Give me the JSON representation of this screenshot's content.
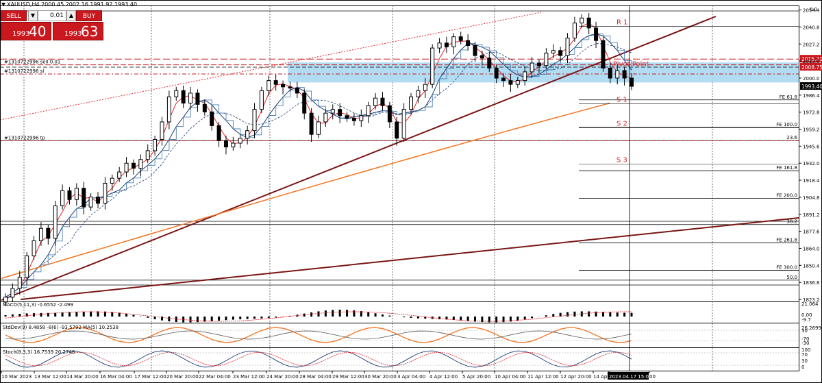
{
  "symbol_header": "XAUUSD,H4  2000.45 2002.16 1991.92 1993.40",
  "trade_panel": {
    "sell_label": "SELL",
    "buy_label": "BUY",
    "lot": "0.01",
    "sell_price_small": "1993",
    "sell_price_big": "40",
    "buy_price_small": "1993",
    "buy_price_big": "63"
  },
  "price_axis": {
    "top_label": "0.0",
    "ticks": [
      2054.4,
      2040.8,
      2027.2,
      2013.6,
      2000.0,
      1986.4,
      1972.8,
      1959.2,
      1945.6,
      1932.0,
      1918.4,
      1904.8,
      1891.2,
      1877.6,
      1864.0,
      1850.4,
      1836.8,
      1823.2
    ],
    "current_price": "1993.40",
    "badges": [
      {
        "text": "2015.21",
        "color": "#c9181e"
      },
      {
        "text": "2008.75",
        "color": "#c9181e"
      }
    ]
  },
  "time_axis": [
    "10 Mar 2023",
    "13 Mar 12:00",
    "14 Mar 20:00",
    "16 Mar 04:00",
    "17 Mar 12:00",
    "20 Mar 20:00",
    "22 Mar 04:00",
    "23 Mar 12:00",
    "24 Mar 20:00",
    "28 Mar 04:00",
    "29 Mar 12:00",
    "30 Mar 20:00",
    "3 Apr 04:00",
    "4 Apr 12:00",
    "5 Apr 20:00",
    "10 Apr 04:00",
    "11 Apr 12:00",
    "12 Apr 20:00",
    "14 Apr",
    "2023.04.17 15:00",
    "00"
  ],
  "order_lines": [
    {
      "label": "#1310722996 sell 0.01",
      "price": 2010.6
    },
    {
      "label": "#1310722996 sl",
      "price": 2003.3
    },
    {
      "label": "#1310722996 tp",
      "price": 1950.0
    }
  ],
  "pivot_labels": [
    "R 1",
    "Pivot Point",
    "S 1",
    "S 2",
    "S 3"
  ],
  "fib_levels": [
    {
      "label": "FE 61.8",
      "price": 1982.6
    },
    {
      "label": "FE 100.0",
      "price": 1960.6
    },
    {
      "label": "23.6",
      "price": 1950.1
    },
    {
      "label": "FE 161.8",
      "price": 1926.0
    },
    {
      "label": "FE 200.0",
      "price": 1904.0
    },
    {
      "label": "38.2",
      "price": 1883.0
    },
    {
      "label": "FE 261.8",
      "price": 1868.4
    },
    {
      "label": "FE 300.0",
      "price": 1846.5
    },
    {
      "label": "50.0",
      "price": 1838.6
    }
  ],
  "indicators": {
    "macd": {
      "label": "MACD(5,11,3) -0.6552 -2.499",
      "ticks": [
        "21.064",
        "0.00",
        "-9.7"
      ]
    },
    "stddev": {
      "label": "StdDev(9) 8.4858 -8(6) -93.5792  MA(5) 10.2538",
      "ticks": [
        "26.2699",
        "30",
        "-70",
        "-30"
      ]
    },
    "stoch": {
      "label": "Stoch(8,3,3) 16.7539 20.2746",
      "ticks": [
        "100",
        "70",
        "30",
        "0"
      ]
    }
  },
  "colors": {
    "candle": "#000000",
    "ma_fast": "#e3242b",
    "ma_slow": "#1b3a73",
    "ma_200": "#f47a2a",
    "trend": "#7a1515",
    "pivot_zone": "#a8d8ef",
    "order_line": "#c9181e"
  },
  "chart_data": {
    "type": "candlestick",
    "symbol": "XAUUSD",
    "timeframe": "H4",
    "ylim": [
      1823.2,
      2058.0
    ],
    "ohlc_last": {
      "open": 2000.45,
      "high": 2002.16,
      "low": 1991.92,
      "close": 1993.4
    },
    "close_path": [
      1825,
      1832,
      1841,
      1858,
      1870,
      1880,
      1872,
      1898,
      1910,
      1903,
      1912,
      1897,
      1905,
      1900,
      1916,
      1920,
      1925,
      1932,
      1928,
      1935,
      1942,
      1951,
      1965,
      1985,
      1990,
      1980,
      1988,
      1979,
      1973,
      1962,
      1950,
      1945,
      1948,
      1952,
      1958,
      1975,
      1990,
      1998,
      1995,
      1993,
      1992,
      1988,
      1972,
      1955,
      1965,
      1972,
      1975,
      1970,
      1968,
      1966,
      1970,
      1978,
      1984,
      1978,
      1965,
      1952,
      1975,
      1985,
      1990,
      1995,
      2024,
      2028,
      2025,
      2033,
      2030,
      2026,
      2018,
      2016,
      2008,
      2000,
      1998,
      1995,
      1998,
      2005,
      2012,
      2010,
      2020,
      2022,
      2018,
      2032,
      2044,
      2048,
      2040,
      2030,
      2008,
      2000,
      2006,
      2000,
      1993.4
    ]
  }
}
